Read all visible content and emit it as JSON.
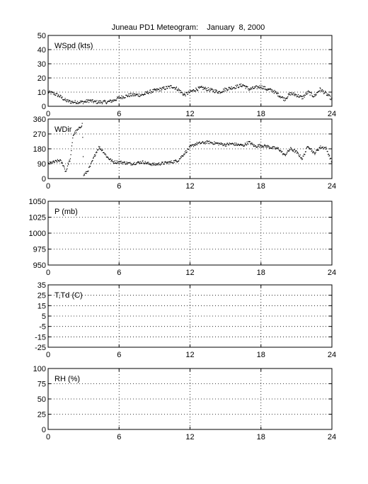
{
  "title": "Juneau PD1 Meteogram:    January  8, 2000",
  "chart_data": [
    {
      "id": "wspd",
      "type": "scatter",
      "label": "WSpd (kts)",
      "xlim": [
        0,
        24
      ],
      "xticks": [
        0,
        6,
        12,
        18,
        24
      ],
      "ylim": [
        0,
        50
      ],
      "yticks": [
        0,
        10,
        20,
        30,
        40,
        50
      ],
      "grid": true,
      "series": [
        {
          "points": [
            [
              0,
              10
            ],
            [
              0.5,
              9
            ],
            [
              1,
              7
            ],
            [
              1.5,
              4
            ],
            [
              2,
              3
            ],
            [
              2.5,
              3
            ],
            [
              3,
              3
            ],
            [
              3.5,
              4
            ],
            [
              4,
              3
            ],
            [
              4.5,
              3
            ],
            [
              5,
              3
            ],
            [
              5.5,
              4
            ],
            [
              6,
              6
            ],
            [
              6.5,
              7
            ],
            [
              7,
              8
            ],
            [
              7.5,
              8
            ],
            [
              8,
              8
            ],
            [
              8.5,
              10
            ],
            [
              9,
              11
            ],
            [
              9.5,
              12
            ],
            [
              10,
              13
            ],
            [
              10.5,
              14
            ],
            [
              11,
              12
            ],
            [
              11.5,
              8
            ],
            [
              12,
              10
            ],
            [
              12.5,
              12
            ],
            [
              13,
              13
            ],
            [
              13.5,
              12
            ],
            [
              14,
              11
            ],
            [
              14.5,
              10
            ],
            [
              15,
              12
            ],
            [
              15.5,
              13
            ],
            [
              16,
              14
            ],
            [
              16.5,
              15
            ],
            [
              17,
              12
            ],
            [
              17.5,
              13
            ],
            [
              18,
              14
            ],
            [
              18.5,
              12
            ],
            [
              19,
              11
            ],
            [
              19.5,
              8
            ],
            [
              20,
              5
            ],
            [
              20.5,
              9
            ],
            [
              21,
              8
            ],
            [
              21.5,
              6
            ],
            [
              22,
              10
            ],
            [
              22.5,
              7
            ],
            [
              23,
              12
            ],
            [
              23.5,
              9
            ],
            [
              24,
              5
            ]
          ]
        }
      ]
    },
    {
      "id": "wdir",
      "type": "scatter",
      "label": "WDir",
      "xlim": [
        0,
        24
      ],
      "xticks": [
        0,
        6,
        12,
        18,
        24
      ],
      "ylim": [
        0,
        360
      ],
      "yticks": [
        0,
        90,
        180,
        270,
        360
      ],
      "grid": true,
      "series": [
        {
          "points": [
            [
              0,
              90
            ],
            [
              0.5,
              100
            ],
            [
              1,
              110
            ],
            [
              1.3,
              80
            ],
            [
              1.5,
              40
            ],
            [
              1.7,
              90
            ],
            [
              1.9,
              120
            ],
            [
              2.1,
              260
            ],
            [
              2.3,
              280
            ],
            [
              2.6,
              300
            ],
            [
              2.9,
              330
            ],
            [
              3,
              20
            ],
            [
              3.3,
              40
            ],
            [
              3.6,
              80
            ],
            [
              4,
              150
            ],
            [
              4.3,
              190
            ],
            [
              4.6,
              170
            ],
            [
              5,
              130
            ],
            [
              5.5,
              100
            ],
            [
              6,
              100
            ],
            [
              6.5,
              95
            ],
            [
              7,
              90
            ],
            [
              7.5,
              95
            ],
            [
              8,
              100
            ],
            [
              8.5,
              90
            ],
            [
              9,
              85
            ],
            [
              9.5,
              90
            ],
            [
              10,
              95
            ],
            [
              10.5,
              100
            ],
            [
              11,
              110
            ],
            [
              11.5,
              150
            ],
            [
              12,
              190
            ],
            [
              12.5,
              210
            ],
            [
              13,
              215
            ],
            [
              13.5,
              220
            ],
            [
              14,
              215
            ],
            [
              14.5,
              210
            ],
            [
              15,
              205
            ],
            [
              15.5,
              210
            ],
            [
              16,
              205
            ],
            [
              16.5,
              200
            ],
            [
              17,
              220
            ],
            [
              17.5,
              195
            ],
            [
              18,
              200
            ],
            [
              18.5,
              195
            ],
            [
              19,
              185
            ],
            [
              19.5,
              180
            ],
            [
              20,
              140
            ],
            [
              20.5,
              180
            ],
            [
              21,
              160
            ],
            [
              21.5,
              120
            ],
            [
              22,
              200
            ],
            [
              22.5,
              150
            ],
            [
              23,
              190
            ],
            [
              23.5,
              185
            ],
            [
              24,
              100
            ]
          ]
        }
      ]
    },
    {
      "id": "pres",
      "type": "scatter",
      "label": "P (mb)",
      "xlim": [
        0,
        24
      ],
      "xticks": [
        0,
        6,
        12,
        18,
        24
      ],
      "ylim": [
        950,
        1050
      ],
      "yticks": [
        950,
        975,
        1000,
        1025,
        1050
      ],
      "grid": true,
      "series": []
    },
    {
      "id": "temp",
      "type": "scatter",
      "label": "T,Td (C)",
      "xlim": [
        0,
        24
      ],
      "xticks": [
        0,
        6,
        12,
        18,
        24
      ],
      "ylim": [
        -25,
        35
      ],
      "yticks": [
        -25,
        -15,
        -5,
        5,
        15,
        25,
        35
      ],
      "grid": true,
      "series": []
    },
    {
      "id": "rh",
      "type": "scatter",
      "label": "RH (%)",
      "xlim": [
        0,
        24
      ],
      "xticks": [
        0,
        6,
        12,
        18,
        24
      ],
      "ylim": [
        0,
        100
      ],
      "yticks": [
        0,
        25,
        50,
        75,
        100
      ],
      "grid": true,
      "series": []
    }
  ]
}
